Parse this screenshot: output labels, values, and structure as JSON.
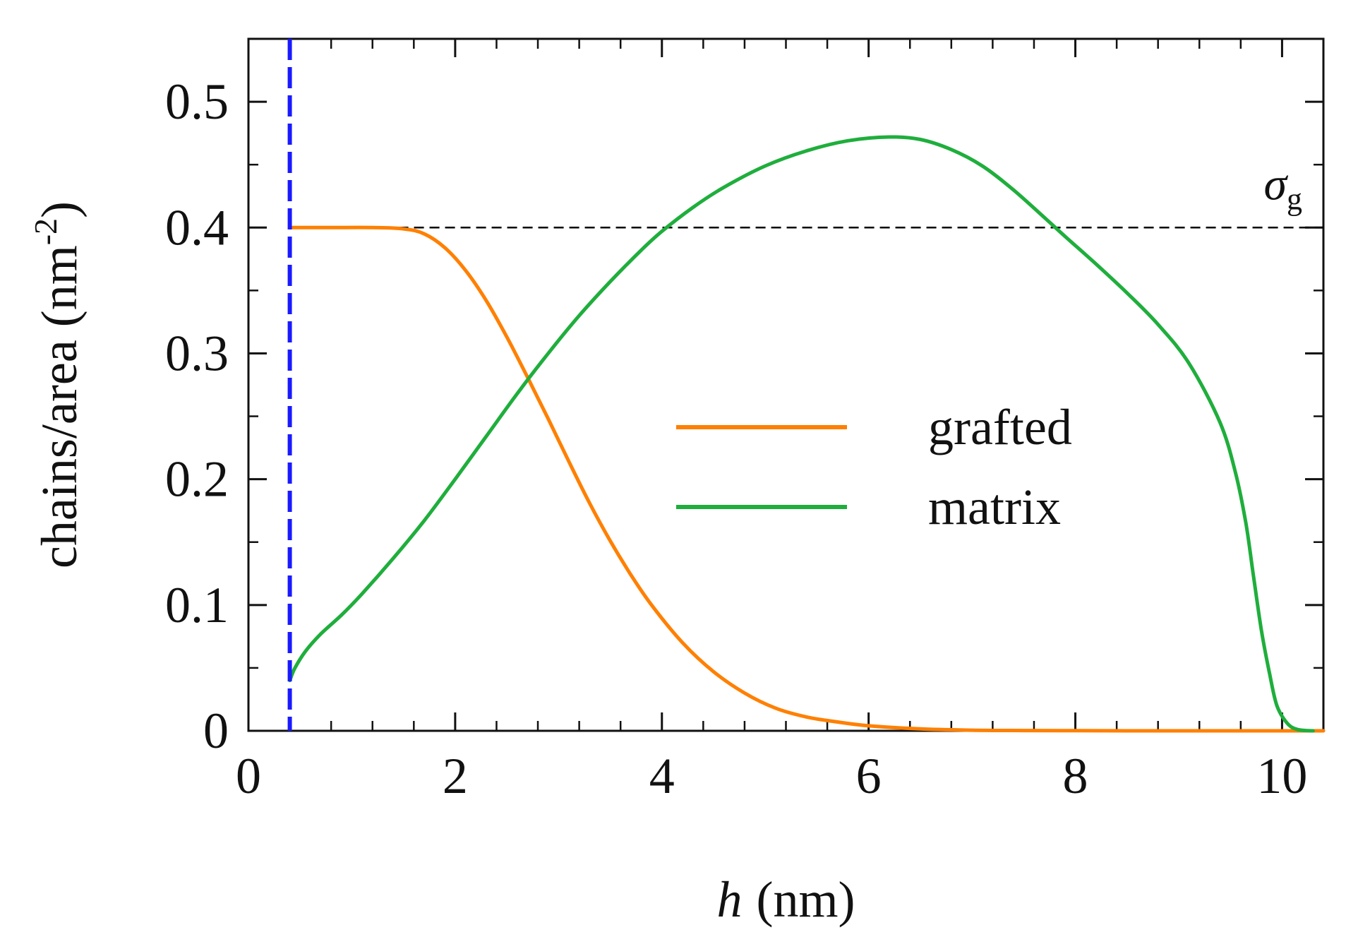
{
  "chart_data": {
    "type": "line",
    "title": "",
    "xlabel_symbol": "h",
    "xlabel_unit": "(nm)",
    "ylabel_base": "chains/area (nm",
    "ylabel_exponent": "-2",
    "ylabel_close": ")",
    "xlim": [
      0,
      10.4
    ],
    "ylim": [
      0,
      0.55
    ],
    "x_ticks": [
      0,
      2,
      4,
      6,
      8,
      10
    ],
    "x_tick_labels": [
      "0",
      "2",
      "4",
      "6",
      "8",
      "10"
    ],
    "y_ticks": [
      0,
      0.1,
      0.2,
      0.3,
      0.4,
      0.5
    ],
    "y_tick_labels": [
      "0",
      "0.1",
      "0.2",
      "0.3",
      "0.4",
      "0.5"
    ],
    "legend_position": "center-right",
    "reference_line": {
      "y": 0.4,
      "label_symbol": "σ",
      "label_subscript": "g",
      "color": "#000000",
      "style": "dashed"
    },
    "vertical_marker": {
      "x": 0.4,
      "color": "#1a1aff",
      "style": "dashed"
    },
    "series": [
      {
        "name": "grafted",
        "color": "#ff8000",
        "x": [
          0.4,
          0.8,
          1.2,
          1.5,
          1.7,
          1.9,
          2.1,
          2.3,
          2.5,
          2.7,
          2.9,
          3.1,
          3.3,
          3.5,
          3.7,
          3.9,
          4.2,
          4.5,
          4.8,
          5.1,
          5.4,
          5.7,
          6.0,
          6.5,
          7.0,
          7.5,
          8.0,
          8.5,
          9.0,
          9.5,
          10.0,
          10.4
        ],
        "y": [
          0.4,
          0.4,
          0.4,
          0.399,
          0.395,
          0.384,
          0.366,
          0.342,
          0.313,
          0.281,
          0.248,
          0.214,
          0.181,
          0.151,
          0.124,
          0.1,
          0.07,
          0.047,
          0.03,
          0.018,
          0.011,
          0.007,
          0.004,
          0.0015,
          0.0005,
          0.0002,
          0.0001,
          0,
          0,
          0,
          0,
          0
        ]
      },
      {
        "name": "matrix",
        "color": "#1fae3c",
        "x": [
          0.4,
          0.45,
          0.55,
          0.7,
          0.9,
          1.1,
          1.4,
          1.7,
          2.0,
          2.3,
          2.6,
          2.9,
          3.2,
          3.5,
          3.8,
          4.0,
          4.3,
          4.6,
          5.0,
          5.4,
          5.8,
          6.2,
          6.5,
          6.8,
          7.1,
          7.4,
          7.7,
          7.9,
          8.2,
          8.5,
          8.8,
          9.1,
          9.4,
          9.55,
          9.65,
          9.72,
          9.8,
          9.88,
          9.95,
          10.05,
          10.15,
          10.3
        ],
        "y": [
          0.04,
          0.05,
          0.063,
          0.077,
          0.092,
          0.109,
          0.137,
          0.167,
          0.2,
          0.234,
          0.268,
          0.3,
          0.33,
          0.357,
          0.382,
          0.397,
          0.416,
          0.432,
          0.449,
          0.461,
          0.469,
          0.472,
          0.47,
          0.462,
          0.449,
          0.43,
          0.408,
          0.393,
          0.371,
          0.348,
          0.323,
          0.292,
          0.245,
          0.205,
          0.165,
          0.125,
          0.08,
          0.045,
          0.02,
          0.006,
          0.001,
          0
        ]
      }
    ]
  }
}
